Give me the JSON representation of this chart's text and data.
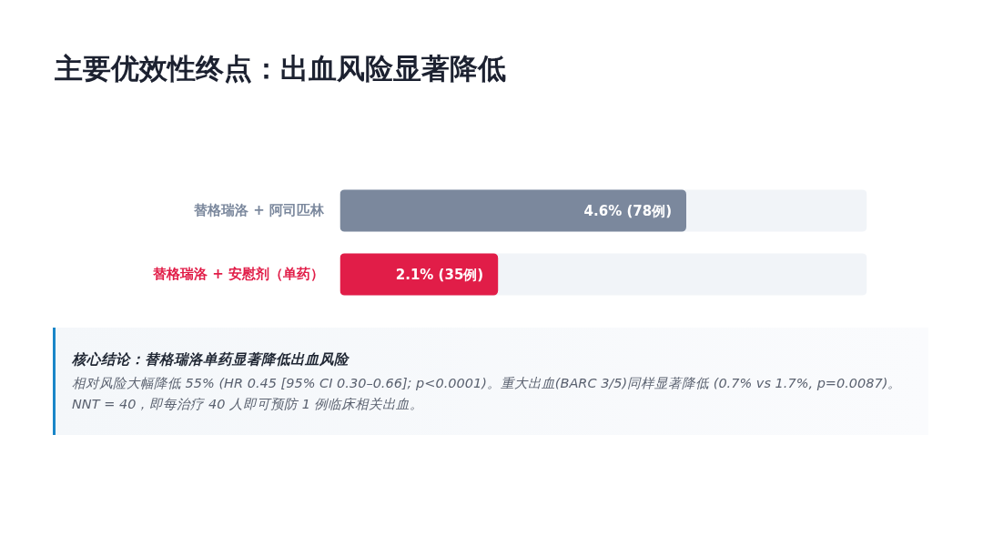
{
  "chart_data": {
    "type": "bar",
    "orientation": "horizontal",
    "title": "主要优效性终点：出血风险显著降低",
    "categories": [
      "替格瑞洛 + 阿司匹林",
      "替格瑞洛 + 安慰剂（单药）"
    ],
    "values": [
      4.6,
      2.1
    ],
    "colors": [
      "#7b889d",
      "#e11d48"
    ],
    "value_labels": [
      "4.6% (78例)",
      "2.1% (35例)"
    ],
    "xlim": [
      0,
      7
    ],
    "tick_labels": "y",
    "annotations": [
      "核心结论：替格瑞洛单药显著降低出血风险",
      "相对风险大幅降低 55% (HR 0.45 [95% CI 0.30–0.66]; p<0.0001)。重大出血(BARC 3/5)同样显著降低 (0.7% vs 1.7%, p=0.0087)。NNT = 40，即每治疗 40 人即可预防 1 例临床相关出血。"
    ]
  }
}
